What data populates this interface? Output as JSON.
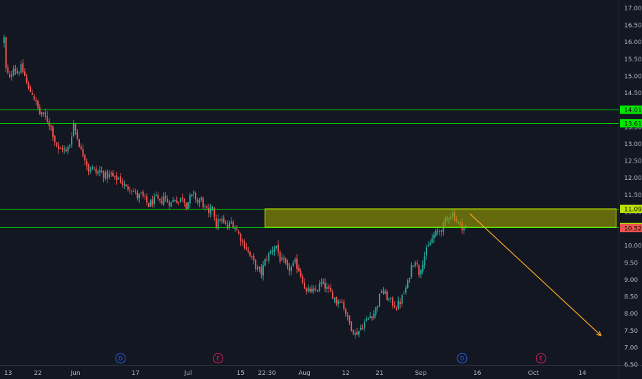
{
  "chart_data": {
    "type": "candlestick",
    "title": "",
    "xlabel": "",
    "ylabel": "",
    "ylim": [
      6.5,
      17.0
    ],
    "grid": false,
    "legend": "none",
    "colors": {
      "background": "#131722",
      "up": "#26a69a",
      "down": "#ef5350",
      "level_line": "#00e600",
      "zone_fill": "#9ba000",
      "projection_arrow": "#f5a623",
      "axis_text": "#b2b5be",
      "dividend_marker": "#2962ff",
      "earnings_marker": "#e91e63"
    },
    "y_ticks": [
      "17.00",
      "16.50",
      "16.00",
      "15.50",
      "15.00",
      "14.50",
      "14.00",
      "13.50",
      "13.00",
      "12.50",
      "12.00",
      "11.50",
      "11.00",
      "10.50",
      "10.00",
      "9.50",
      "9.00",
      "8.50",
      "8.00",
      "7.50",
      "7.00",
      "6.50"
    ],
    "x_ticks": [
      {
        "label": "13",
        "day": 0
      },
      {
        "label": "22",
        "day": 9
      },
      {
        "label": "Jun",
        "day": 19
      },
      {
        "label": "17",
        "day": 35
      },
      {
        "label": "Jul",
        "day": 49
      },
      {
        "label": "15",
        "day": 63
      },
      {
        "label": "22:30",
        "day": 70
      },
      {
        "label": "Aug",
        "day": 80
      },
      {
        "label": "12",
        "day": 91
      },
      {
        "label": "21",
        "day": 100
      },
      {
        "label": "Sep",
        "day": 111
      },
      {
        "label": "16",
        "day": 126
      },
      {
        "label": "Oct",
        "day": 141
      },
      {
        "label": "14",
        "day": 154
      }
    ],
    "price_path": [
      [
        0,
        16.0
      ],
      [
        0.5,
        16.1
      ],
      [
        1,
        15.2
      ],
      [
        2,
        14.9
      ],
      [
        3,
        15.3
      ],
      [
        4,
        15.1
      ],
      [
        5,
        15.25
      ],
      [
        6,
        15.0
      ],
      [
        7,
        14.6
      ],
      [
        8,
        14.5
      ],
      [
        9,
        14.2
      ],
      [
        10,
        13.9
      ],
      [
        11,
        13.85
      ],
      [
        12,
        13.7
      ],
      [
        13,
        13.5
      ],
      [
        14,
        13.1
      ],
      [
        15,
        12.8
      ],
      [
        16,
        12.9
      ],
      [
        17,
        12.75
      ],
      [
        18,
        13.0
      ],
      [
        19,
        13.6
      ],
      [
        20,
        13.2
      ],
      [
        21,
        12.8
      ],
      [
        22,
        12.6
      ],
      [
        23,
        12.25
      ],
      [
        24,
        12.3
      ],
      [
        25,
        12.15
      ],
      [
        26,
        12.2
      ],
      [
        27,
        12.1
      ],
      [
        28,
        12.05
      ],
      [
        29,
        12.1
      ],
      [
        30,
        11.95
      ],
      [
        31,
        12.0
      ],
      [
        32,
        11.85
      ],
      [
        33,
        11.7
      ],
      [
        34,
        11.75
      ],
      [
        35,
        11.6
      ],
      [
        36,
        11.45
      ],
      [
        37,
        11.5
      ],
      [
        38,
        11.35
      ],
      [
        39,
        11.2
      ],
      [
        40,
        11.3
      ],
      [
        41,
        11.4
      ],
      [
        42,
        11.25
      ],
      [
        43,
        11.45
      ],
      [
        44,
        11.3
      ],
      [
        45,
        11.25
      ],
      [
        46,
        11.4
      ],
      [
        47,
        11.3
      ],
      [
        48,
        11.45
      ],
      [
        49,
        11.2
      ],
      [
        50,
        11.4
      ],
      [
        51,
        11.5
      ],
      [
        52,
        11.3
      ],
      [
        53,
        11.35
      ],
      [
        54,
        11.1
      ],
      [
        55,
        10.9
      ],
      [
        56,
        11.2
      ],
      [
        57,
        10.6
      ],
      [
        58,
        10.8
      ],
      [
        59,
        10.65
      ],
      [
        60,
        10.55
      ],
      [
        61,
        10.7
      ],
      [
        62,
        10.55
      ],
      [
        63,
        10.35
      ],
      [
        64,
        10.1
      ],
      [
        65,
        9.95
      ],
      [
        66,
        9.7
      ],
      [
        67,
        9.5
      ],
      [
        68,
        9.3
      ],
      [
        69,
        9.2
      ],
      [
        70,
        9.55
      ],
      [
        71,
        9.75
      ],
      [
        72,
        9.9
      ],
      [
        73,
        10.0
      ],
      [
        74,
        9.6
      ],
      [
        75,
        9.5
      ],
      [
        76,
        9.3
      ],
      [
        77,
        9.35
      ],
      [
        78,
        9.5
      ],
      [
        79,
        9.3
      ],
      [
        80,
        9.0
      ],
      [
        81,
        8.6
      ],
      [
        82,
        8.7
      ],
      [
        83,
        8.6
      ],
      [
        84,
        8.75
      ],
      [
        85,
        8.9
      ],
      [
        86,
        8.8
      ],
      [
        87,
        8.65
      ],
      [
        88,
        8.55
      ],
      [
        89,
        8.35
      ],
      [
        90,
        8.45
      ],
      [
        91,
        8.2
      ],
      [
        92,
        7.85
      ],
      [
        93,
        7.6
      ],
      [
        94,
        7.4
      ],
      [
        95,
        7.5
      ],
      [
        96,
        7.65
      ],
      [
        97,
        7.8
      ],
      [
        98,
        7.95
      ],
      [
        99,
        8.0
      ],
      [
        100,
        8.3
      ],
      [
        101,
        8.7
      ],
      [
        102,
        8.55
      ],
      [
        103,
        8.4
      ],
      [
        104,
        8.3
      ],
      [
        105,
        8.2
      ],
      [
        106,
        8.35
      ],
      [
        107,
        8.6
      ],
      [
        108,
        8.9
      ],
      [
        109,
        9.4
      ],
      [
        110,
        9.6
      ],
      [
        111,
        9.2
      ],
      [
        112,
        9.55
      ],
      [
        113,
        9.85
      ],
      [
        114,
        10.1
      ],
      [
        115,
        10.3
      ],
      [
        116,
        10.4
      ],
      [
        117,
        10.5
      ],
      [
        118,
        10.7
      ],
      [
        119,
        10.9
      ],
      [
        120,
        10.95
      ],
      [
        121,
        10.75
      ],
      [
        122,
        10.6
      ],
      [
        123,
        10.55
      ]
    ],
    "levels": [
      {
        "price": 14.01,
        "label": "14.01"
      },
      {
        "price": 13.61,
        "label": "13.61"
      },
      {
        "price": 11.09,
        "label": "11.09"
      },
      {
        "price": 10.55,
        "label": "10.55"
      }
    ],
    "current_price": {
      "price": 10.52,
      "label": "10.52"
    },
    "zone": {
      "from_day": 69.5,
      "to_day": 163,
      "low": 10.55,
      "high": 11.09
    },
    "projection": {
      "start": [
        124,
        10.95
      ],
      "end": [
        159,
        7.35
      ]
    },
    "events": [
      {
        "day": 31,
        "letter": "D",
        "kind": "dividend"
      },
      {
        "day": 57,
        "letter": "E",
        "kind": "earnings"
      },
      {
        "day": 122,
        "letter": "D",
        "kind": "dividend"
      },
      {
        "day": 143,
        "letter": "E",
        "kind": "earnings"
      }
    ]
  }
}
